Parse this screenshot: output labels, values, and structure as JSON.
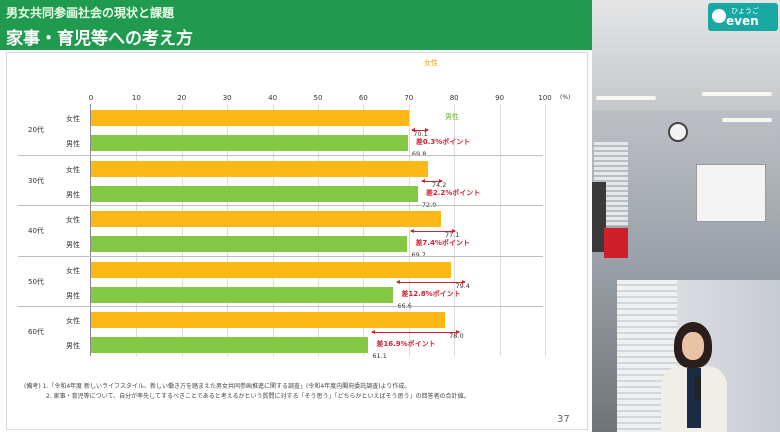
{
  "slide": {
    "subtitle": "男女共同参画社会の現状と課題",
    "title": "家事・育児等への考え方",
    "unit": "(%)",
    "page_number": "37",
    "footnote_1": "(備考) 1.「令和4年度 新しいライフスタイル、新しい働き方を踏まえた男女共同参画推進に関する調査」(令和4年度内閣府委託調査)より作成。",
    "footnote_2": "2. 家事・育児等について、自分が率先してするべきことであると考えるかという質問に対する「そう思う」「どちらかといえばそう思う」の回答者の合計値。"
  },
  "chart_data": {
    "type": "bar",
    "orientation": "horizontal",
    "title": "家事・育児等への考え方",
    "xlim": [
      0,
      100
    ],
    "ticks": [
      "0",
      "10",
      "20",
      "30",
      "40",
      "50",
      "60",
      "70",
      "80",
      "90",
      "100"
    ],
    "unit": "(%)",
    "grid": true,
    "legend_labels": {
      "female": "女性",
      "male": "男性"
    },
    "colors": {
      "female": "#fbb817",
      "male": "#82c843",
      "diff": "#d41f2f"
    },
    "groups": [
      {
        "age": "20代",
        "female_label": "女性",
        "male_label": "男性",
        "female": 70.1,
        "male": 69.8,
        "female_text": "70.1",
        "male_text": "69.8",
        "diff_text": "差0.3%ポイント"
      },
      {
        "age": "30代",
        "female_label": "女性",
        "male_label": "男性",
        "female": 74.2,
        "male": 72.0,
        "female_text": "74.2",
        "male_text": "72.0",
        "diff_text": "差2.2%ポイント"
      },
      {
        "age": "40代",
        "female_label": "女性",
        "male_label": "男性",
        "female": 77.1,
        "male": 69.7,
        "female_text": "77.1",
        "male_text": "69.7",
        "diff_text": "差7.4%ポイント"
      },
      {
        "age": "50代",
        "female_label": "女性",
        "male_label": "男性",
        "female": 79.4,
        "male": 66.6,
        "female_text": "79.4",
        "male_text": "66.6",
        "diff_text": "差12.8%ポイント"
      },
      {
        "age": "60代",
        "female_label": "女性",
        "male_label": "男性",
        "female": 78.0,
        "male": 61.1,
        "female_text": "78.0",
        "male_text": "61.1",
        "diff_text": "差16.9%ポイント"
      }
    ]
  },
  "video": {
    "logo_top": "ひょうご",
    "logo_main": "even",
    "logo_color": "#17a9a1"
  }
}
